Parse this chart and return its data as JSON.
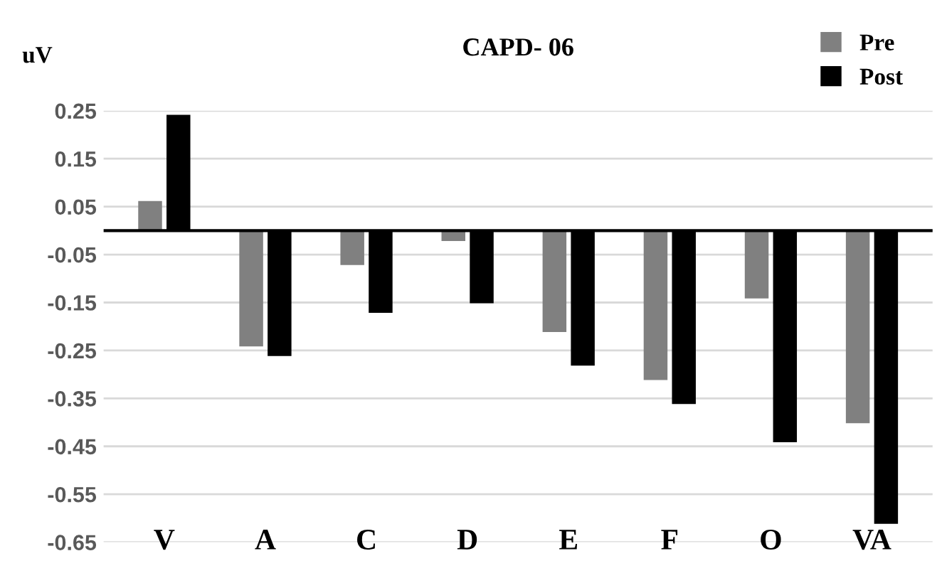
{
  "chart_data": {
    "type": "bar",
    "title": "CAPD- 06",
    "ylabel": "uV",
    "categories": [
      "V",
      "A",
      "C",
      "D",
      "E",
      "F",
      "O",
      "VA"
    ],
    "series": [
      {
        "name": "Pre",
        "color": "#808080",
        "values": [
          0.06,
          -0.24,
          -0.07,
          -0.02,
          -0.21,
          -0.31,
          -0.14,
          -0.4
        ]
      },
      {
        "name": "Post",
        "color": "#000000",
        "values": [
          0.24,
          -0.26,
          -0.17,
          -0.15,
          -0.28,
          -0.36,
          -0.44,
          -0.61
        ]
      }
    ],
    "ylim": [
      -0.65,
      0.25
    ],
    "yticks": [
      {
        "value": 0.25,
        "label": "0.25"
      },
      {
        "value": 0.15,
        "label": "0.15"
      },
      {
        "value": 0.05,
        "label": "0.05"
      },
      {
        "value": -0.05,
        "label": "-0.05"
      },
      {
        "value": -0.15,
        "label": "-0.15"
      },
      {
        "value": -0.25,
        "label": "-0.25"
      },
      {
        "value": -0.35,
        "label": "-0.35"
      },
      {
        "value": -0.45,
        "label": "-0.45"
      },
      {
        "value": -0.55,
        "label": "-0.55"
      },
      {
        "value": -0.65,
        "label": "-0.65"
      }
    ],
    "grid": "y",
    "legend": "top right"
  }
}
